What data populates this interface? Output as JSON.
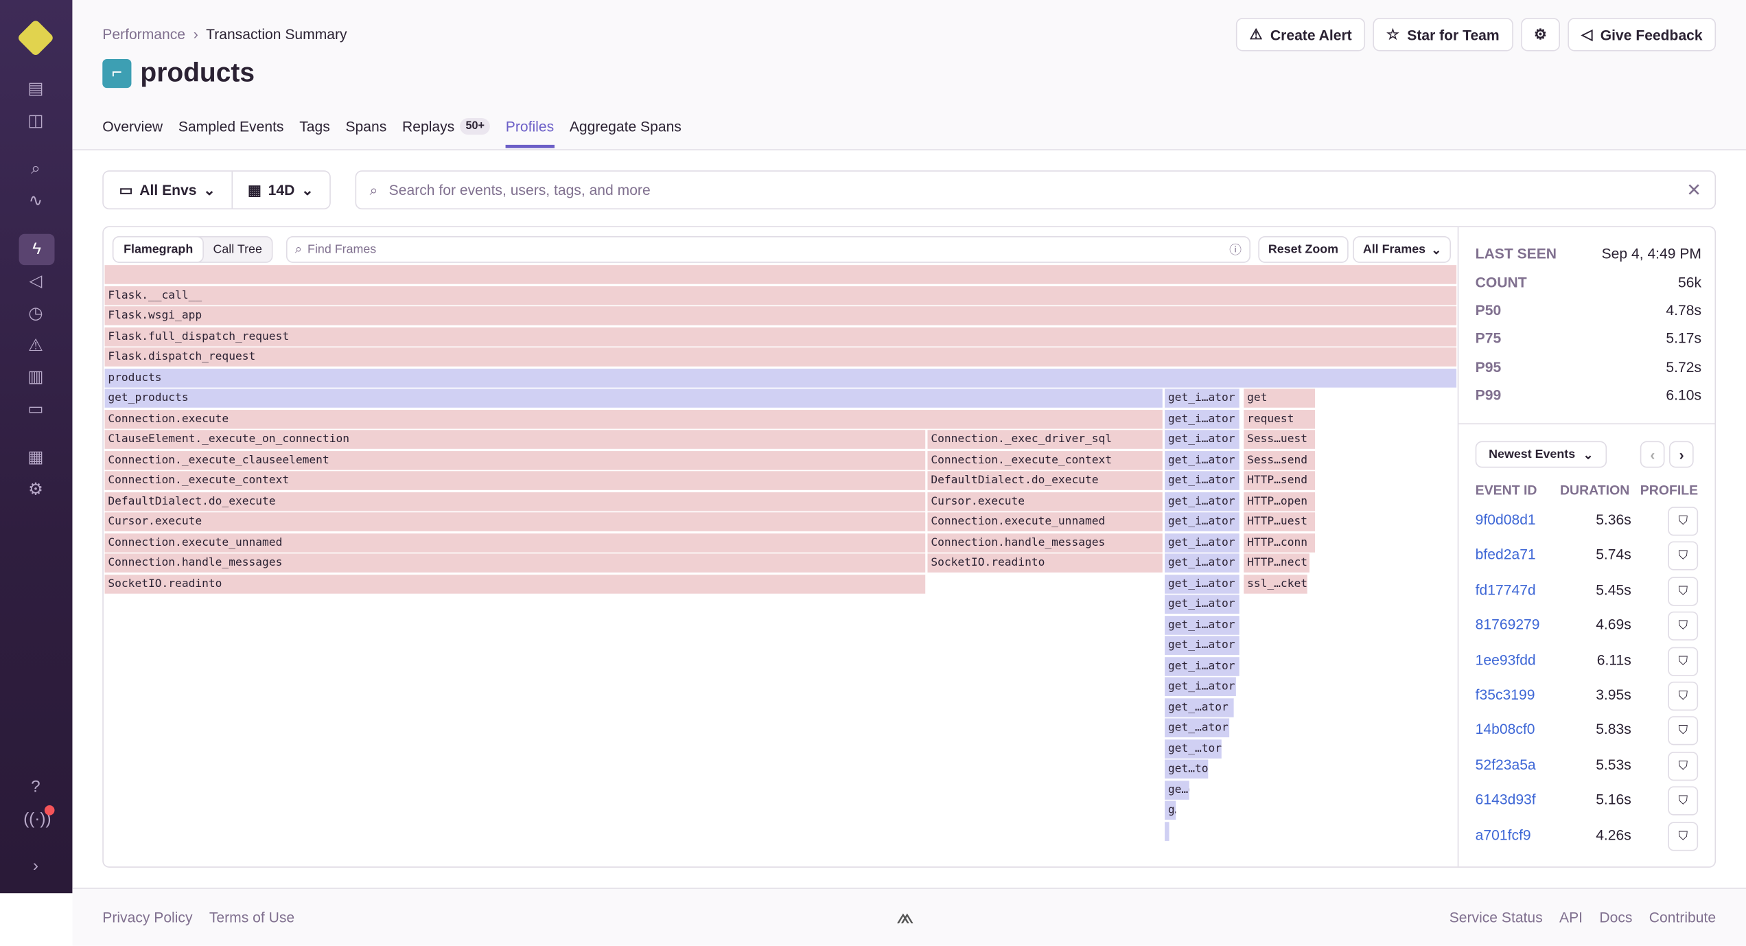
{
  "breadcrumb": [
    "Performance",
    "Transaction Summary"
  ],
  "title": "products",
  "header_buttons": [
    "Create Alert",
    "Star for Team",
    "Give Feedback"
  ],
  "tabs": [
    {
      "label": "Overview"
    },
    {
      "label": "Sampled Events"
    },
    {
      "label": "Tags"
    },
    {
      "label": "Spans"
    },
    {
      "label": "Replays",
      "badge": "50+"
    },
    {
      "label": "Profiles",
      "active": true
    },
    {
      "label": "Aggregate Spans"
    }
  ],
  "filters": {
    "env": "All Envs",
    "period": "14D"
  },
  "search": {
    "placeholder": "Search for events, users, tags, and more"
  },
  "flame": {
    "views": [
      "Flamegraph",
      "Call Tree"
    ],
    "find_placeholder": "Find Frames",
    "reset_zoom": "Reset Zoom",
    "frames_filter": "All Frames"
  },
  "frames": {
    "full": [
      "",
      "Flask.__call__",
      "Flask.wsgi_app",
      "Flask.full_dispatch_request",
      "Flask.dispatch_request",
      "products"
    ],
    "col1": [
      "get_products",
      "Connection.execute",
      "ClauseElement._execute_on_connection",
      "Connection._execute_clauseelement",
      "Connection._execute_context",
      "DefaultDialect.do_execute",
      "Cursor.execute",
      "Connection.execute_unnamed",
      "Connection.handle_messages",
      "SocketIO.readinto"
    ],
    "col2": [
      "Connection._exec_driver_sql",
      "Connection._execute_context",
      "DefaultDialect.do_execute",
      "Cursor.execute",
      "Connection.execute_unnamed",
      "Connection.handle_messages",
      "SocketIO.readinto"
    ],
    "col3": [
      "get_i…ator",
      "get_i…ator",
      "get_i…ator",
      "get_i…ator",
      "get_i…ator",
      "get_i…ator",
      "get_i…ator",
      "get_i…ator",
      "get_i…ator",
      "get_i…ator",
      "get_i…ator",
      "get_i…ator",
      "get_i…ator",
      "get_i…ator",
      "get_i…ator",
      "get_…ator",
      "get_…ator",
      "get_…tor",
      "get…tor",
      "ge…or",
      "g…",
      ""
    ],
    "col4": [
      "get",
      "request",
      "Sess…uest",
      "Sess…send",
      "HTTP…send",
      "HTTP…open",
      "HTTP…uest",
      "HTTP…conn",
      "HTTP…nect",
      "ssl_…cket"
    ]
  },
  "stats": [
    {
      "k": "LAST SEEN",
      "v": "Sep 4, 4:49 PM"
    },
    {
      "k": "COUNT",
      "v": "56k"
    },
    {
      "k": "P50",
      "v": "4.78s"
    },
    {
      "k": "P75",
      "v": "5.17s"
    },
    {
      "k": "P95",
      "v": "5.72s"
    },
    {
      "k": "P99",
      "v": "6.10s"
    }
  ],
  "events": {
    "sort": "Newest Events",
    "headers": [
      "EVENT ID",
      "DURATION",
      "PROFILE"
    ],
    "rows": [
      {
        "id": "9f0d08d1",
        "d": "5.36s"
      },
      {
        "id": "bfed2a71",
        "d": "5.74s"
      },
      {
        "id": "fd17747d",
        "d": "5.45s"
      },
      {
        "id": "81769279",
        "d": "4.69s"
      },
      {
        "id": "1ee93fdd",
        "d": "6.11s"
      },
      {
        "id": "f35c3199",
        "d": "3.95s"
      },
      {
        "id": "14b08cf0",
        "d": "5.83s"
      },
      {
        "id": "52f23a5a",
        "d": "5.53s"
      },
      {
        "id": "6143d93f",
        "d": "5.16s"
      },
      {
        "id": "a701fcf9",
        "d": "4.26s"
      }
    ]
  },
  "colors": {
    "accent": "#6c5fc7",
    "app_frame": "#d0d0f3",
    "system_frame": "#f0d0d2",
    "link": "#3e67d6"
  },
  "footer": {
    "left": [
      "Privacy Policy",
      "Terms of Use"
    ],
    "right": [
      "Service Status",
      "API",
      "Docs",
      "Contribute"
    ]
  }
}
